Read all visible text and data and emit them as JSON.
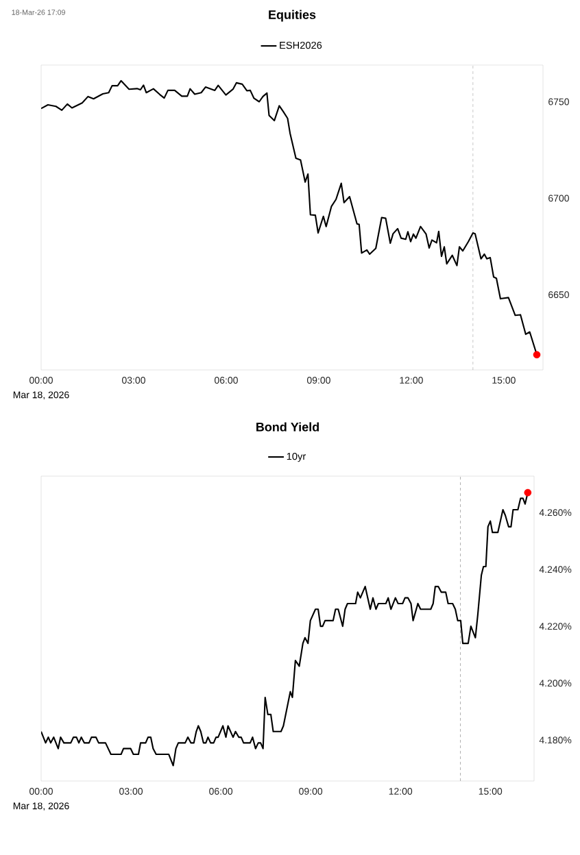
{
  "chart_data": [
    {
      "type": "line",
      "title": "Equities",
      "xlabel": "Mar 18, 2026",
      "annotations": [
        "18-Mar-26 17:09"
      ],
      "legend": "top",
      "xlim": [
        0,
        16.27
      ],
      "ylim": [
        6611,
        6769
      ],
      "xticks": [
        {
          "value": 0,
          "label": "00:00"
        },
        {
          "value": 3,
          "label": "03:00"
        },
        {
          "value": 6,
          "label": "06:00"
        },
        {
          "value": 9,
          "label": "09:00"
        },
        {
          "value": 12,
          "label": "12:00"
        },
        {
          "value": 15,
          "label": "15:00"
        }
      ],
      "yticks": [
        6650,
        6700,
        6750
      ],
      "ref_lines": [
        {
          "axis": "x",
          "value": 14.0,
          "color": "#999999",
          "line_style": "dashed"
        }
      ],
      "series": [
        {
          "name": "ESH2026",
          "color": "#000000",
          "line_style": "solid",
          "x": [
            0,
            0.22,
            0.48,
            0.67,
            0.85,
            1.0,
            1.33,
            1.52,
            1.7,
            2.0,
            2.19,
            2.3,
            2.48,
            2.59,
            2.85,
            3.11,
            3.22,
            3.32,
            3.41,
            3.64,
            3.85,
            3.99,
            4.11,
            4.33,
            4.56,
            4.74,
            4.83,
            4.98,
            5.19,
            5.33,
            5.63,
            5.74,
            5.99,
            6.22,
            6.33,
            6.52,
            6.67,
            6.78,
            6.9,
            7.07,
            7.19,
            7.32,
            7.39,
            7.56,
            7.72,
            7.85,
            7.99,
            8.07,
            8.26,
            8.41,
            8.56,
            8.65,
            8.73,
            8.89,
            8.98,
            9.15,
            9.24,
            9.41,
            9.56,
            9.73,
            9.82,
            10.0,
            10.24,
            10.31,
            10.39,
            10.56,
            10.65,
            10.85,
            11.04,
            11.17,
            11.32,
            11.41,
            11.56,
            11.67,
            11.82,
            11.89,
            11.98,
            12.07,
            12.15,
            12.3,
            12.48,
            12.58,
            12.67,
            12.82,
            12.89,
            12.98,
            13.07,
            13.15,
            13.33,
            13.48,
            13.56,
            13.67,
            13.85,
            14.0,
            14.07,
            14.26,
            14.37,
            14.45,
            14.56,
            14.67,
            14.76,
            14.89,
            15.15,
            15.37,
            15.54,
            15.71,
            15.84,
            16.07
          ],
          "values": [
            6746.5,
            6748.4,
            6747.6,
            6745.6,
            6748.8,
            6746.8,
            6749.4,
            6752.7,
            6751.5,
            6754.1,
            6754.7,
            6758.3,
            6758.3,
            6760.9,
            6756.5,
            6756.8,
            6756.2,
            6758.6,
            6754.7,
            6756.7,
            6753.7,
            6751.9,
            6755.9,
            6755.9,
            6752.9,
            6752.9,
            6756.7,
            6753.9,
            6754.7,
            6757.6,
            6755.9,
            6758.5,
            6753.5,
            6756.5,
            6759.8,
            6759.1,
            6755.7,
            6755.9,
            6751.8,
            6750.0,
            6752.7,
            6754.5,
            6742.9,
            6740.2,
            6747.9,
            6744.9,
            6741.4,
            6733.7,
            6720.7,
            6719.8,
            6708.4,
            6712.5,
            6691.4,
            6691.2,
            6682.0,
            6690.6,
            6685.3,
            6695.7,
            6699.4,
            6707.7,
            6697.7,
            6700.8,
            6686.7,
            6686.4,
            6671.6,
            6673.2,
            6671.0,
            6674.0,
            6690.0,
            6689.6,
            6676.7,
            6681.6,
            6684.2,
            6679.3,
            6678.7,
            6682.6,
            6677.5,
            6681.4,
            6679.3,
            6685.3,
            6681.4,
            6674.2,
            6678.3,
            6676.9,
            6682.8,
            6669.9,
            6674.8,
            6666.0,
            6670.4,
            6665.1,
            6674.8,
            6672.7,
            6677.5,
            6682.0,
            6681.6,
            6668.6,
            6671.0,
            6668.6,
            6669.2,
            6659.2,
            6658.5,
            6647.9,
            6648.5,
            6639.3,
            6639.6,
            6629.5,
            6630.7,
            6618.9
          ]
        },
        {
          "color": "#ff0000",
          "type": "scatter",
          "marker": "circle",
          "x": [
            16.07
          ],
          "values": [
            6618.9
          ]
        }
      ]
    },
    {
      "type": "line",
      "title": "Bond Yield",
      "xlabel": "Mar 18, 2026",
      "legend": "top",
      "xlim": [
        0,
        16.46
      ],
      "ylim": [
        4.1656,
        4.2728
      ],
      "xticks": [
        {
          "value": 0,
          "label": "00:00"
        },
        {
          "value": 3,
          "label": "03:00"
        },
        {
          "value": 6,
          "label": "06:00"
        },
        {
          "value": 9,
          "label": "09:00"
        },
        {
          "value": 12,
          "label": "12:00"
        },
        {
          "value": 15,
          "label": "15:00"
        }
      ],
      "yticks": [
        {
          "value": 4.18,
          "label": "4.180%"
        },
        {
          "value": 4.2,
          "label": "4.200%"
        },
        {
          "value": 4.22,
          "label": "4.220%"
        },
        {
          "value": 4.24,
          "label": "4.240%"
        },
        {
          "value": 4.26,
          "label": "4.260%"
        }
      ],
      "ref_lines": [
        {
          "axis": "x",
          "value": 14.0,
          "color": "#999999",
          "line_style": "dashed"
        }
      ],
      "series": [
        {
          "name": "10yr",
          "color": "#000000",
          "line_style": "solid",
          "x": [
            0,
            0.15,
            0.24,
            0.32,
            0.42,
            0.57,
            0.65,
            0.76,
            0.99,
            1.08,
            1.18,
            1.26,
            1.34,
            1.44,
            1.6,
            1.68,
            1.83,
            1.92,
            2.15,
            2.33,
            2.67,
            2.75,
            2.99,
            3.08,
            3.25,
            3.32,
            3.49,
            3.57,
            3.66,
            3.74,
            3.84,
            4.26,
            4.41,
            4.5,
            4.58,
            4.81,
            4.9,
            5.0,
            5.1,
            5.18,
            5.25,
            5.33,
            5.42,
            5.5,
            5.57,
            5.66,
            5.76,
            5.84,
            5.91,
            6.07,
            6.17,
            6.24,
            6.41,
            6.49,
            6.6,
            6.68,
            6.76,
            6.98,
            7.06,
            7.16,
            7.25,
            7.33,
            7.41,
            7.48,
            7.57,
            7.67,
            7.75,
            8.01,
            8.09,
            8.32,
            8.39,
            8.49,
            8.62,
            8.74,
            8.81,
            8.91,
            8.99,
            9.16,
            9.25,
            9.33,
            9.4,
            9.48,
            9.75,
            9.83,
            9.92,
            10.07,
            10.15,
            10.23,
            10.5,
            10.57,
            10.66,
            10.82,
            10.99,
            11.08,
            11.18,
            11.26,
            11.51,
            11.59,
            11.68,
            11.83,
            11.92,
            12.07,
            12.15,
            12.25,
            12.35,
            12.42,
            12.58,
            12.67,
            13.01,
            13.09,
            13.16,
            13.26,
            13.36,
            13.51,
            13.59,
            13.74,
            13.83,
            13.91,
            14.01,
            14.08,
            14.26,
            14.35,
            14.5,
            14.58,
            14.7,
            14.77,
            14.85,
            14.92,
            15.0,
            15.07,
            15.25,
            15.42,
            15.5,
            15.61,
            15.69,
            15.76,
            15.92,
            16.01,
            16.09,
            16.16,
            16.25
          ],
          "values": [
            4.183,
            4.179,
            4.181,
            4.179,
            4.181,
            4.177,
            4.181,
            4.179,
            4.179,
            4.181,
            4.181,
            4.179,
            4.181,
            4.179,
            4.179,
            4.181,
            4.181,
            4.179,
            4.179,
            4.175,
            4.175,
            4.177,
            4.177,
            4.175,
            4.175,
            4.179,
            4.179,
            4.181,
            4.181,
            4.177,
            4.175,
            4.175,
            4.171,
            4.177,
            4.179,
            4.179,
            4.181,
            4.179,
            4.179,
            4.183,
            4.185,
            4.183,
            4.179,
            4.179,
            4.181,
            4.179,
            4.179,
            4.181,
            4.181,
            4.185,
            4.181,
            4.185,
            4.181,
            4.183,
            4.181,
            4.181,
            4.179,
            4.179,
            4.181,
            4.177,
            4.179,
            4.179,
            4.177,
            4.195,
            4.189,
            4.189,
            4.183,
            4.183,
            4.185,
            4.197,
            4.195,
            4.208,
            4.206,
            4.214,
            4.216,
            4.214,
            4.222,
            4.226,
            4.226,
            4.22,
            4.22,
            4.222,
            4.222,
            4.226,
            4.226,
            4.22,
            4.226,
            4.228,
            4.228,
            4.232,
            4.23,
            4.234,
            4.226,
            4.23,
            4.226,
            4.228,
            4.228,
            4.23,
            4.226,
            4.23,
            4.228,
            4.228,
            4.23,
            4.23,
            4.228,
            4.222,
            4.228,
            4.226,
            4.226,
            4.228,
            4.234,
            4.234,
            4.232,
            4.232,
            4.228,
            4.228,
            4.226,
            4.222,
            4.222,
            4.214,
            4.214,
            4.22,
            4.216,
            4.224,
            4.238,
            4.241,
            4.241,
            4.255,
            4.257,
            4.253,
            4.253,
            4.261,
            4.259,
            4.255,
            4.255,
            4.261,
            4.261,
            4.265,
            4.265,
            4.263,
            4.267
          ]
        },
        {
          "color": "#ff0000",
          "type": "scatter",
          "marker": "circle",
          "x": [
            16.25
          ],
          "values": [
            4.267
          ]
        }
      ]
    }
  ]
}
